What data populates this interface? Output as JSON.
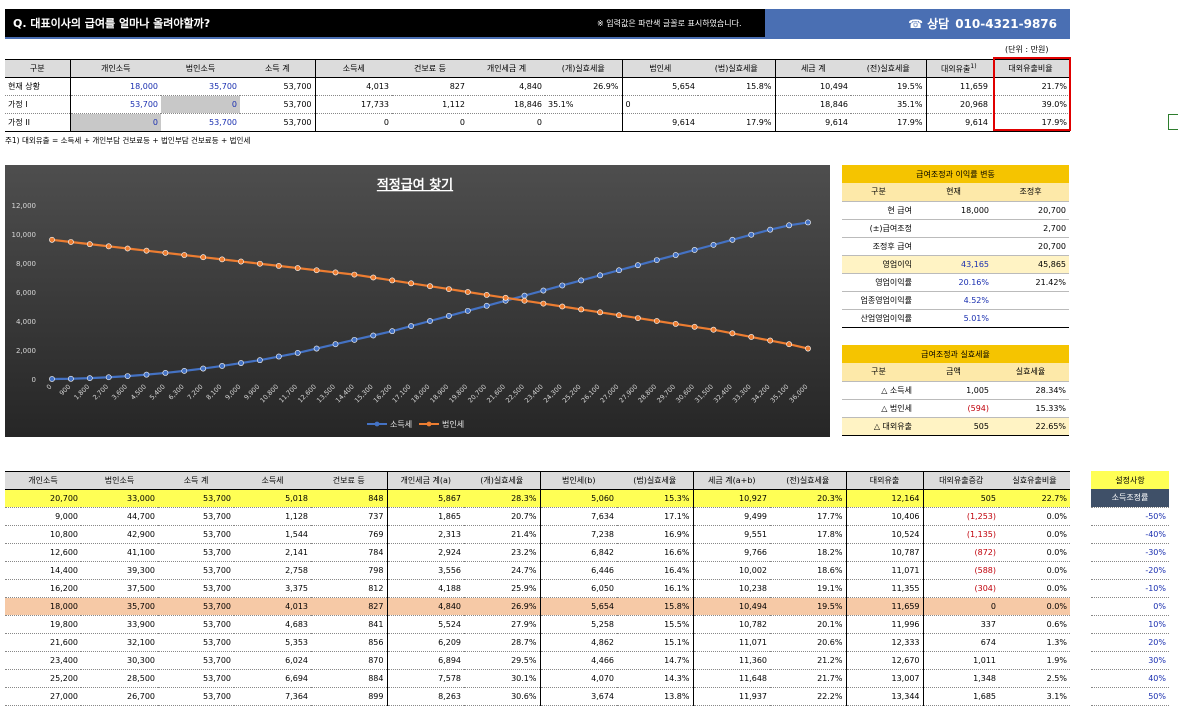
{
  "header": {
    "title": "Q. 대표이사의 급여를 얼마나 올려야할까?",
    "note": "※ 입력값은 파란색 글꼴로 표시하였습니다.",
    "contact_label": "상담",
    "phone": "010-4321-9876"
  },
  "unit": "(단위 : 만원)",
  "summary": {
    "headers": [
      "구분",
      "개인소득",
      "법인소득",
      "소득 계",
      "소득세",
      "건보료 등",
      "개인세금 계",
      "(개)실효세율",
      "법인세",
      "(법)실효세율",
      "세금 계",
      "(전)실효세율",
      "대외유출",
      "대외유출비율"
    ],
    "rows": [
      [
        "현재 상황",
        "18,000",
        "35,700",
        "53,700",
        "4,013",
        "827",
        "4,840",
        "26.9%",
        "5,654",
        "15.8%",
        "10,494",
        "19.5%",
        "11,659",
        "21.7%"
      ],
      [
        "가정 I",
        "53,700",
        "0",
        "53,700",
        "17,733",
        "1,112",
        "18,846",
        "35.1%",
        "0",
        "",
        "18,846",
        "35.1%",
        "20,968",
        "39.0%"
      ],
      [
        "가정 II",
        "0",
        "53,700",
        "53,700",
        "0",
        "0",
        "0",
        "",
        "9,614",
        "17.9%",
        "9,614",
        "17.9%",
        "9,614",
        "17.9%"
      ]
    ],
    "footnote": "주1) 대외유출 = 소득세 + 개인부담 건보료등 + 법인부담 건보료등 + 법인세"
  },
  "chart_data": {
    "type": "line",
    "title": "적정급여 찾기",
    "x": [
      0,
      900,
      1800,
      2700,
      3600,
      4500,
      5400,
      6300,
      7200,
      8100,
      9000,
      9900,
      10800,
      11700,
      12600,
      13500,
      14400,
      15300,
      16200,
      17100,
      18000,
      18900,
      19800,
      20700,
      21600,
      22500,
      23400,
      24300,
      25200,
      26100,
      27000,
      27900,
      28800,
      29700,
      30600,
      31500,
      32400,
      33300,
      34200,
      35100,
      36000
    ],
    "x_tick_labels": [
      "0",
      "900",
      "1,800",
      "2,700",
      "3,600",
      "4,500",
      "5,400",
      "6,300",
      "7,200",
      "8,100",
      "9,000",
      "9,900",
      "10,800",
      "11,700",
      "12,600",
      "13,500",
      "14,400",
      "15,300",
      "16,200",
      "17,100",
      "18,000",
      "18,900",
      "19,800",
      "20,700",
      "21,600",
      "22,500",
      "23,400",
      "24,300",
      "25,200",
      "26,100",
      "27,000",
      "27,900",
      "28,800",
      "29,700",
      "30,600",
      "31,500",
      "32,400",
      "33,300",
      "34,200",
      "35,100",
      "36,000"
    ],
    "y_tick_labels": [
      "0",
      "2,000",
      "4,000",
      "6,000",
      "8,000",
      "10,000",
      "12,000"
    ],
    "ylim": [
      0,
      12000
    ],
    "grid": false,
    "legend": "bottom-center",
    "series": [
      {
        "name": "소득세",
        "color": "#4472c4",
        "values": [
          0,
          15,
          60,
          120,
          200,
          300,
          420,
          560,
          720,
          900,
          1100,
          1300,
          1550,
          1800,
          2100,
          2400,
          2700,
          3000,
          3300,
          3650,
          4000,
          4350,
          4700,
          5050,
          5400,
          5750,
          6100,
          6450,
          6800,
          7150,
          7500,
          7850,
          8200,
          8550,
          8900,
          9250,
          9600,
          9950,
          10300,
          10600,
          10800
        ]
      },
      {
        "name": "법인세",
        "color": "#ed7d31",
        "values": [
          9600,
          9450,
          9300,
          9150,
          9000,
          8850,
          8700,
          8550,
          8400,
          8250,
          8100,
          7950,
          7800,
          7650,
          7500,
          7350,
          7200,
          7000,
          6800,
          6600,
          6400,
          6200,
          6000,
          5800,
          5600,
          5400,
          5200,
          5000,
          4800,
          4600,
          4400,
          4200,
          4000,
          3800,
          3600,
          3400,
          3150,
          2900,
          2650,
          2400,
          2100
        ]
      }
    ]
  },
  "panel1": {
    "title": "급여조정과 이익률 변동",
    "headers": [
      "구분",
      "현재",
      "조정후"
    ],
    "rows": [
      [
        "현 급여",
        "18,000",
        "20,700"
      ],
      [
        "(±)급여조정",
        "",
        "2,700"
      ],
      [
        "조정후 급여",
        "",
        "20,700"
      ],
      [
        "영업이익",
        "43,165",
        "45,865"
      ],
      [
        "영업이익률",
        "20.16%",
        "21.42%"
      ],
      [
        "업종영업이익률",
        "4.52%",
        ""
      ],
      [
        "산업영업이익률",
        "5.01%",
        ""
      ]
    ]
  },
  "panel2": {
    "title": "급여조정과 실효세율",
    "headers": [
      "구분",
      "금액",
      "실효세율"
    ],
    "rows": [
      [
        "△ 소득세",
        "1,005",
        "28.34%"
      ],
      [
        "△ 법인세",
        "(594)",
        "15.33%"
      ],
      [
        "△ 대외유출",
        "505",
        "22.65%"
      ]
    ]
  },
  "simulation": {
    "headers": [
      "개인소득",
      "법인소득",
      "소득 계",
      "소득세",
      "건보료 등",
      "개인세금 계(a)",
      "(개)실효세율",
      "법인세(b)",
      "(법)실효세율",
      "세금 계(a+b)",
      "(전)실효세율",
      "대외유출",
      "대외유출증감",
      "실효유출비율"
    ],
    "rows": [
      [
        "20,700",
        "33,000",
        "53,700",
        "5,018",
        "848",
        "5,867",
        "28.3%",
        "5,060",
        "15.3%",
        "10,927",
        "20.3%",
        "12,164",
        "505",
        "22.7%"
      ],
      [
        "9,000",
        "44,700",
        "53,700",
        "1,128",
        "737",
        "1,865",
        "20.7%",
        "7,634",
        "17.1%",
        "9,499",
        "17.7%",
        "10,406",
        "(1,253)",
        "0.0%"
      ],
      [
        "10,800",
        "42,900",
        "53,700",
        "1,544",
        "769",
        "2,313",
        "21.4%",
        "7,238",
        "16.9%",
        "9,551",
        "17.8%",
        "10,524",
        "(1,135)",
        "0.0%"
      ],
      [
        "12,600",
        "41,100",
        "53,700",
        "2,141",
        "784",
        "2,924",
        "23.2%",
        "6,842",
        "16.6%",
        "9,766",
        "18.2%",
        "10,787",
        "(872)",
        "0.0%"
      ],
      [
        "14,400",
        "39,300",
        "53,700",
        "2,758",
        "798",
        "3,556",
        "24.7%",
        "6,446",
        "16.4%",
        "10,002",
        "18.6%",
        "11,071",
        "(588)",
        "0.0%"
      ],
      [
        "16,200",
        "37,500",
        "53,700",
        "3,375",
        "812",
        "4,188",
        "25.9%",
        "6,050",
        "16.1%",
        "10,238",
        "19.1%",
        "11,355",
        "(304)",
        "0.0%"
      ],
      [
        "18,000",
        "35,700",
        "53,700",
        "4,013",
        "827",
        "4,840",
        "26.9%",
        "5,654",
        "15.8%",
        "10,494",
        "19.5%",
        "11,659",
        "0",
        "0.0%"
      ],
      [
        "19,800",
        "33,900",
        "53,700",
        "4,683",
        "841",
        "5,524",
        "27.9%",
        "5,258",
        "15.5%",
        "10,782",
        "20.1%",
        "11,996",
        "337",
        "0.6%"
      ],
      [
        "21,600",
        "32,100",
        "53,700",
        "5,353",
        "856",
        "6,209",
        "28.7%",
        "4,862",
        "15.1%",
        "11,071",
        "20.6%",
        "12,333",
        "674",
        "1.3%"
      ],
      [
        "23,400",
        "30,300",
        "53,700",
        "6,024",
        "870",
        "6,894",
        "29.5%",
        "4,466",
        "14.7%",
        "11,360",
        "21.2%",
        "12,670",
        "1,011",
        "1.9%"
      ],
      [
        "25,200",
        "28,500",
        "53,700",
        "6,694",
        "884",
        "7,578",
        "30.1%",
        "4,070",
        "14.3%",
        "11,648",
        "21.7%",
        "13,007",
        "1,348",
        "2.5%"
      ],
      [
        "27,000",
        "26,700",
        "53,700",
        "7,364",
        "899",
        "8,263",
        "30.6%",
        "3,674",
        "13.8%",
        "11,937",
        "22.2%",
        "13,344",
        "1,685",
        "3.1%"
      ]
    ]
  },
  "settings": {
    "title": "설정사항",
    "header": "소득조정률",
    "values": [
      "-50%",
      "-40%",
      "-30%",
      "-20%",
      "-10%",
      "0%",
      "10%",
      "20%",
      "30%",
      "40%",
      "50%"
    ]
  }
}
